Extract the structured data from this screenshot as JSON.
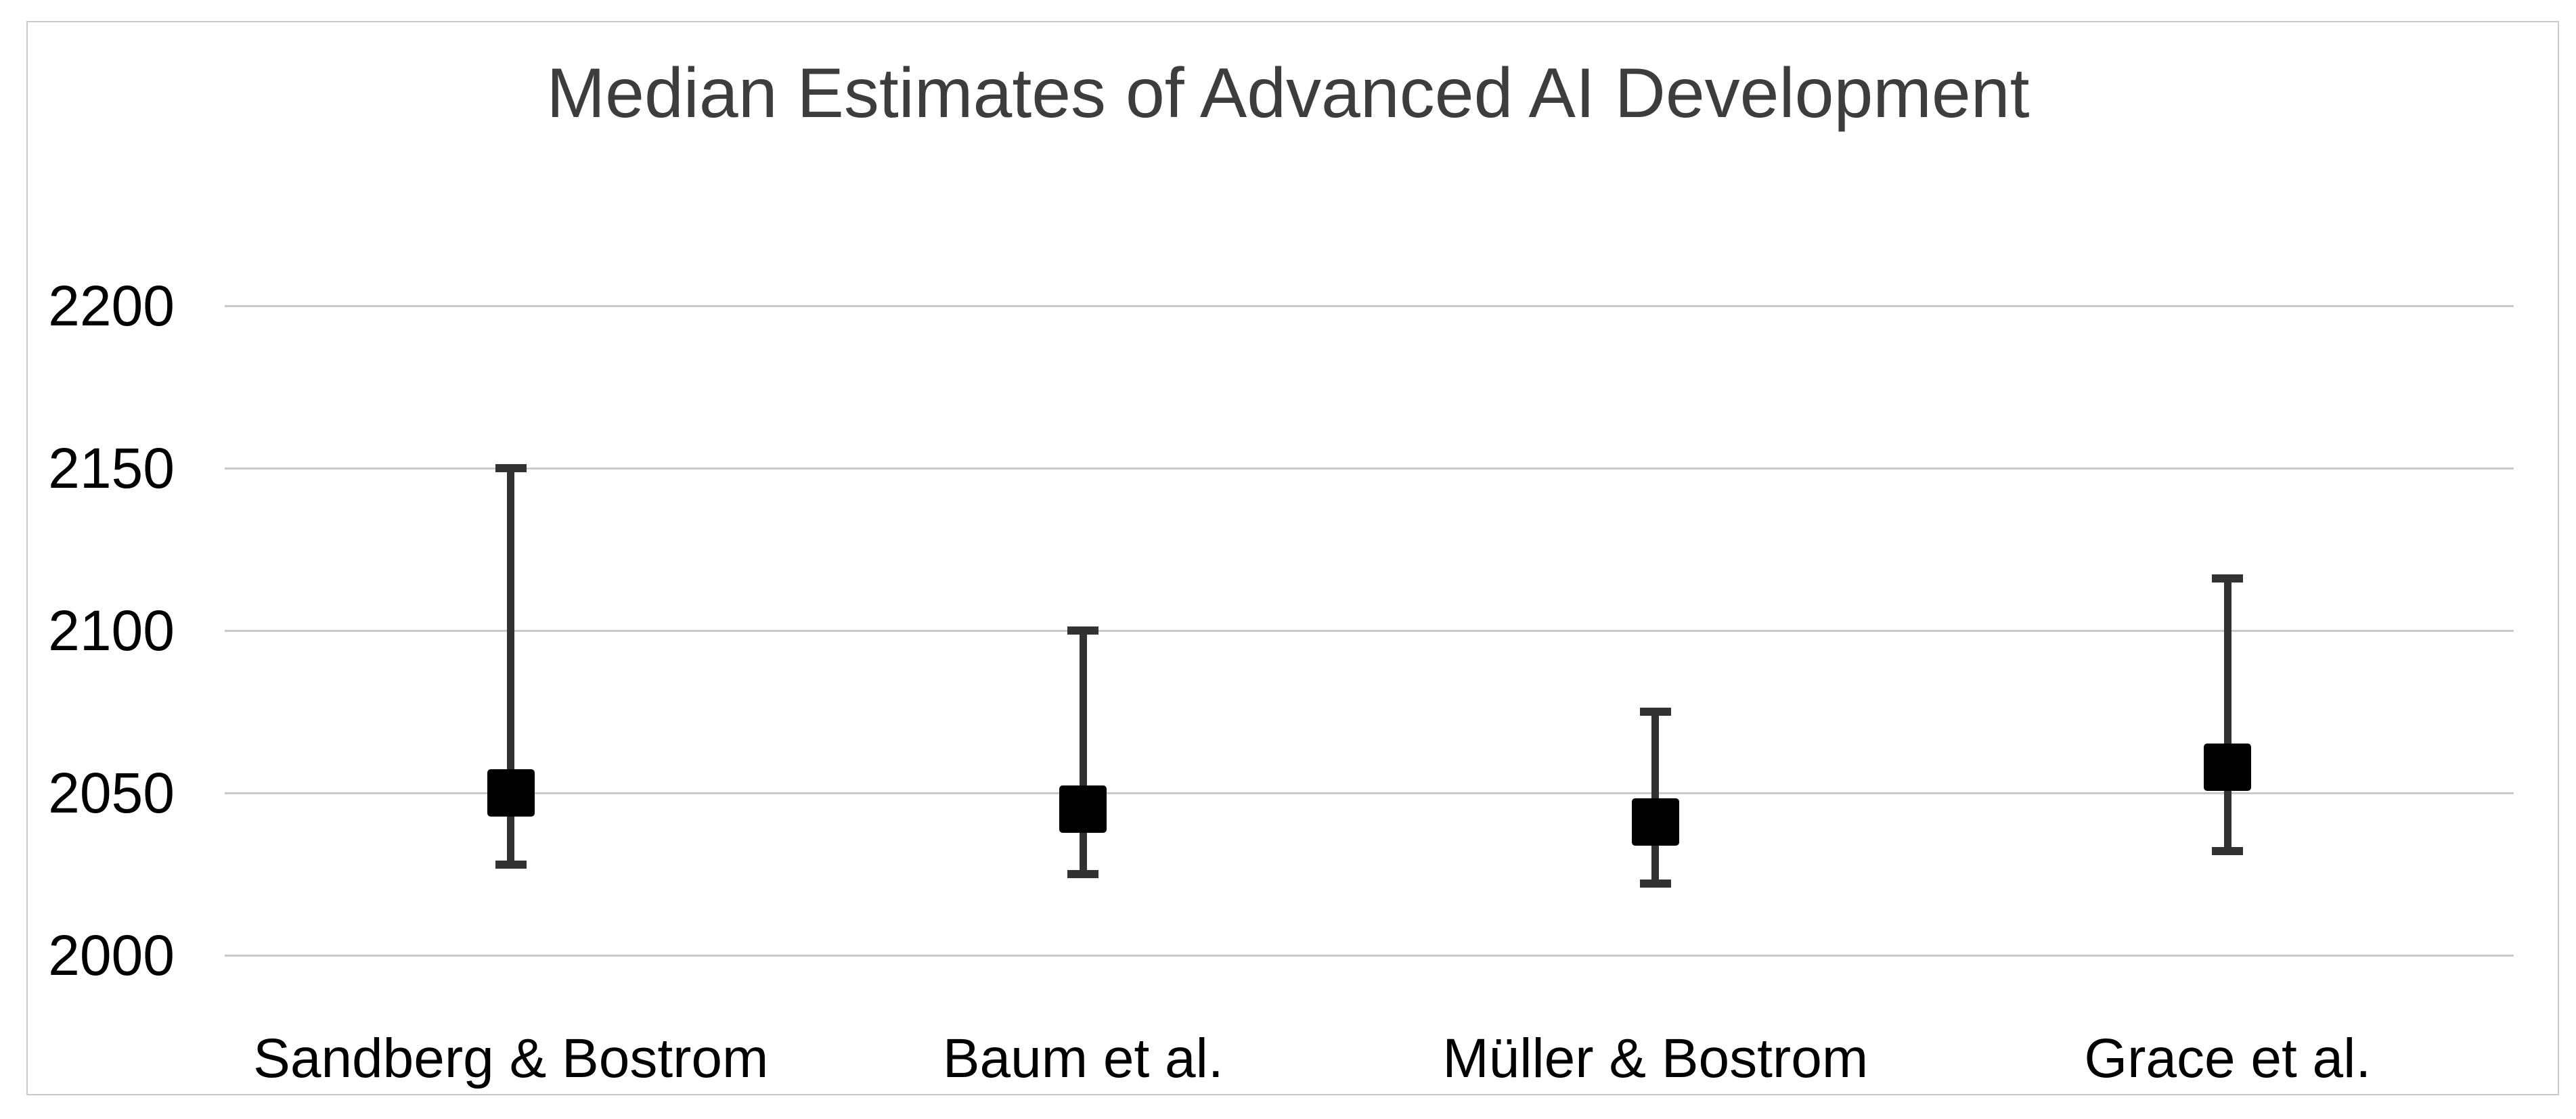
{
  "chart_data": {
    "type": "scatter",
    "subtype": "error-bar",
    "title": "Median Estimates of Advanced AI Development",
    "xlabel": "",
    "ylabel": "",
    "categories": [
      "Sandberg & Bostrom",
      "Baum et al.",
      "Müller & Bostrom",
      "Grace et al."
    ],
    "series": [
      {
        "name": "Sandberg & Bostrom",
        "low": 2028,
        "median": 2050,
        "high": 2150
      },
      {
        "name": "Baum et al.",
        "low": 2025,
        "median": 2045,
        "high": 2100
      },
      {
        "name": "Müller & Bostrom",
        "low": 2022,
        "median": 2041,
        "high": 2075
      },
      {
        "name": "Grace et al.",
        "low": 2032,
        "median": 2058,
        "high": 2116
      }
    ],
    "yticks": [
      2000,
      2050,
      2100,
      2150,
      2200
    ],
    "ylim": [
      1957,
      2288
    ],
    "grid": true,
    "legend": false,
    "marker": "square",
    "colors": {
      "marker": "#000000",
      "whisker": "#323232",
      "gridline": "#c9c9c9",
      "frame_border": "#c9c9c9",
      "title_color": "#3d3d3d",
      "label_color": "#000000",
      "background": "#ffffff"
    }
  }
}
